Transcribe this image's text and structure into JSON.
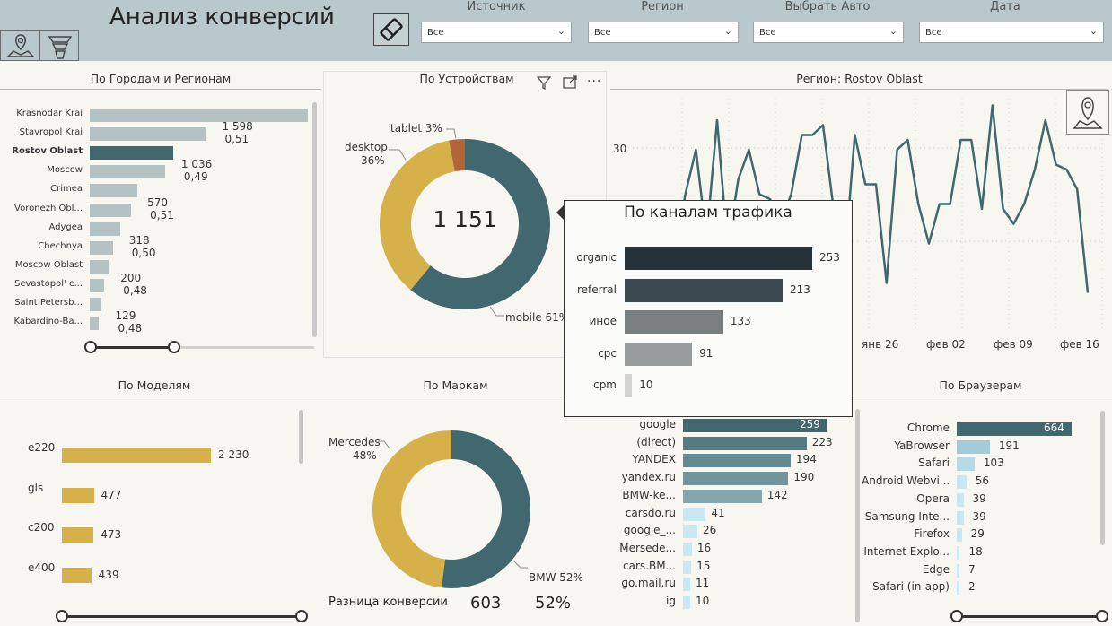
{
  "app": {
    "title": "Анализ конверсий"
  },
  "filters": [
    {
      "label": "Источник",
      "value": "Все"
    },
    {
      "label": "Регион",
      "value": "Все"
    },
    {
      "label": "Выбрать Авто",
      "value": "Все"
    },
    {
      "label": "Дата",
      "value": "Все"
    }
  ],
  "icons": {
    "map": "map-pin-icon",
    "funnel": "funnel-icon",
    "eraser": "eraser-icon",
    "filter": "filter-icon",
    "focus": "focus-mode-icon",
    "more": "more-options-icon"
  },
  "colors": {
    "header": "#b8c8cc",
    "teal": "#41676f",
    "gold": "#d6b14a",
    "rust": "#b0653a",
    "greyBar": "#b5c2c4"
  },
  "cities": {
    "title": "По Городам и Регионам",
    "items": [
      {
        "name": "Krasnodar Krai",
        "value": 3000,
        "label": "",
        "sub": ""
      },
      {
        "name": "Stavropol Krai",
        "value": 1598,
        "label": "1 598",
        "sub": "0,51"
      },
      {
        "name": "Rostov Oblast",
        "value": 1151,
        "label": "",
        "sub": "",
        "selected": true
      },
      {
        "name": "Moscow",
        "value": 1036,
        "label": "1 036",
        "sub": "0,49"
      },
      {
        "name": "Crimea",
        "value": 650,
        "label": "",
        "sub": ""
      },
      {
        "name": "Voronezh Obl...",
        "value": 570,
        "label": "570",
        "sub": "0,51"
      },
      {
        "name": "Adygea",
        "value": 420,
        "label": "",
        "sub": ""
      },
      {
        "name": "Chechnya",
        "value": 318,
        "label": "318",
        "sub": "0,50"
      },
      {
        "name": "Moscow Oblast",
        "value": 260,
        "label": "",
        "sub": ""
      },
      {
        "name": "Sevastopol' c...",
        "value": 200,
        "label": "200",
        "sub": "0,48"
      },
      {
        "name": "Saint Petersb...",
        "value": 160,
        "label": "",
        "sub": ""
      },
      {
        "name": "Kabardino-Ba...",
        "value": 129,
        "label": "129",
        "sub": "0,48"
      }
    ]
  },
  "devices": {
    "title": "По Устройствам",
    "total": "1 151",
    "slices": [
      {
        "name": "mobile",
        "pct": 61,
        "label": "mobile 61%",
        "color": "#41676f"
      },
      {
        "name": "desktop",
        "pct": 36,
        "label": "desktop\n36%",
        "color": "#d6b14a"
      },
      {
        "name": "tablet",
        "pct": 3,
        "label": "tablet 3%",
        "color": "#b0653a"
      }
    ],
    "labels": {
      "desktop": "desktop",
      "desktopPct": "36%",
      "tablet": "tablet 3%",
      "mobile": "mobile 61%"
    }
  },
  "region_chart": {
    "title": "Регион: Rostov Oblast",
    "ytick": "30",
    "xticks": [
      "янв 26",
      "фев 02",
      "фев 09",
      "фев 16"
    ],
    "chart_data": {
      "type": "line",
      "y": [
        18,
        8,
        21,
        30,
        12,
        36,
        10,
        24,
        30,
        21,
        20,
        15,
        21,
        33,
        33,
        35,
        18,
        6,
        33,
        23,
        23,
        3,
        30,
        32,
        19,
        11,
        19,
        19,
        32,
        32,
        18,
        39,
        18,
        15,
        19,
        26,
        36,
        27,
        26,
        22,
        1
      ]
    }
  },
  "traffic": {
    "title": "По каналам трафика",
    "chart_data": {
      "type": "bar",
      "categories": [
        "organic",
        "referral",
        "иное",
        "cpc",
        "cpm"
      ],
      "values": [
        253,
        213,
        133,
        91,
        10
      ]
    },
    "colors": [
      "#253238",
      "#3b4a50",
      "#7a8080",
      "#999c9c",
      "#d4d4d4"
    ]
  },
  "models": {
    "title": "По Моделям",
    "chart_data": {
      "type": "bar",
      "categories": [
        "e220",
        "gls",
        "c200",
        "e400"
      ],
      "values": [
        2230,
        477,
        473,
        439
      ]
    },
    "labels": [
      "2 230",
      "477",
      "473",
      "439"
    ]
  },
  "brands": {
    "title": "По Маркам",
    "chart_data": {
      "type": "pie",
      "categories": [
        "BMW",
        "Mercedes"
      ],
      "values": [
        52,
        48
      ]
    },
    "labels": {
      "mercedes": "Mercedes",
      "mercedesPct": "48%",
      "bmw": "BMW 52%"
    },
    "diff_label": "Разница конверсии",
    "diff_value": "603",
    "diff_pct": "52%"
  },
  "sources": {
    "chart_data": {
      "type": "bar",
      "categories": [
        "google",
        "(direct)",
        "YANDEX",
        "yandex.ru",
        "BMW-ke...",
        "carsdo.ru",
        "google_...",
        "Mersede...",
        "cars.BM...",
        "go.mail.ru",
        "ig"
      ],
      "values": [
        259,
        223,
        194,
        190,
        142,
        41,
        26,
        16,
        15,
        11,
        10
      ]
    }
  },
  "browsers": {
    "title": "По Браузерам",
    "chart_data": {
      "type": "bar",
      "categories": [
        "Chrome",
        "YaBrowser",
        "Safari",
        "Android Webvi...",
        "Opera",
        "Samsung Inte...",
        "Firefox",
        "Internet Explo...",
        "Edge",
        "Safari (in-app)"
      ],
      "values": [
        664,
        191,
        103,
        56,
        39,
        39,
        29,
        18,
        7,
        2
      ]
    }
  }
}
